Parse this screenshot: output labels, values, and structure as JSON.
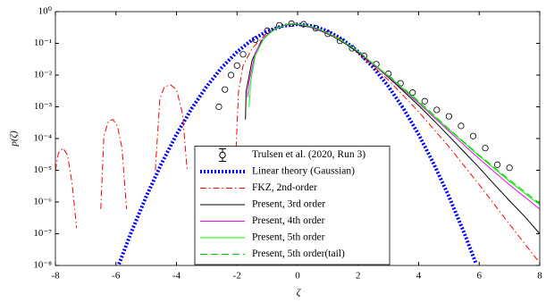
{
  "chart_data": {
    "type": "line",
    "x_label": "ζ",
    "y_label": "p(ζ)",
    "xlim": [
      -8,
      8
    ],
    "xticks": [
      -8,
      -6,
      -4,
      -2,
      0,
      2,
      4,
      6,
      8
    ],
    "ylim": [
      1e-08,
      1
    ],
    "y_scale": "log",
    "yticks": [
      {
        "value": 1e-08,
        "label": "10⁻⁸"
      },
      {
        "value": 1e-07,
        "label": "10⁻⁷"
      },
      {
        "value": 1e-06,
        "label": "10⁻⁶"
      },
      {
        "value": 1e-05,
        "label": "10⁻⁵"
      },
      {
        "value": 0.0001,
        "label": "10⁻⁴"
      },
      {
        "value": 0.001,
        "label": "10⁻³"
      },
      {
        "value": 0.01,
        "label": "10⁻²"
      },
      {
        "value": 0.1,
        "label": "10⁻¹"
      },
      {
        "value": 1,
        "label": "10⁰"
      }
    ],
    "legend_position": "bottom",
    "series": [
      {
        "name": "Trulsen et al. (2020, Run 3)",
        "color": "#000000",
        "style": "markers",
        "x": [
          -2.6,
          -2.4,
          -2.2,
          -2.0,
          -1.8,
          -1.4,
          -1.0,
          -0.6,
          -0.2,
          0.2,
          0.6,
          1.0,
          1.4,
          1.8,
          2.2,
          2.6,
          3.0,
          3.4,
          3.8,
          4.2,
          4.6,
          5.0,
          5.4,
          5.8,
          6.2,
          6.6,
          7.0
        ],
        "values": [
          0.001,
          0.0035,
          0.01,
          0.02,
          0.045,
          0.13,
          0.25,
          0.37,
          0.42,
          0.4,
          0.3,
          0.2,
          0.12,
          0.07,
          0.04,
          0.022,
          0.011,
          0.0055,
          0.0028,
          0.0015,
          0.0008,
          0.0005,
          0.00025,
          0.00012,
          5e-05,
          1.5e-05,
          1.2e-05
        ]
      },
      {
        "name": "Linear theory (Gaussian)",
        "color": "#0000ff",
        "style": "dotted",
        "x": [
          -5.9,
          -5.5,
          -5,
          -4.5,
          -4,
          -3.5,
          -3,
          -2.5,
          -2,
          -1.5,
          -1,
          -0.5,
          0,
          0.5,
          1,
          1.5,
          2,
          2.5,
          3,
          3.5,
          4,
          4.5,
          5,
          5.5,
          5.9
        ],
        "values": [
          1.1e-08,
          1.08e-07,
          1.49e-06,
          1.6e-05,
          0.000134,
          0.00087,
          0.00443,
          0.0175,
          0.054,
          0.1295,
          0.242,
          0.352,
          0.399,
          0.352,
          0.242,
          0.1295,
          0.054,
          0.0175,
          0.00443,
          0.00087,
          0.000134,
          1.6e-05,
          1.49e-06,
          1.08e-07,
          1.1e-08
        ]
      },
      {
        "name": "FKZ, 2nd-order",
        "color": "#ff0000",
        "style": "dashdot",
        "x": [
          -8,
          -7.9,
          -7.75,
          -7.6,
          -7.45,
          -7.3,
          null,
          -6.5,
          -6.4,
          -6.25,
          -6.1,
          -5.95,
          -5.8,
          -5.65,
          null,
          -4.7,
          -4.55,
          -4.4,
          -4.2,
          -4.0,
          -3.8,
          -3.65,
          null,
          -2.05,
          -1.95,
          -1.8,
          -1.5,
          -1.0,
          -0.5,
          -0.2,
          0,
          0.5,
          1,
          1.5,
          2,
          3,
          4,
          5,
          6,
          7,
          8
        ],
        "values": [
          1e-05,
          3.5e-05,
          5e-05,
          3e-05,
          4e-06,
          1.5e-07,
          null,
          6e-07,
          0.00012,
          0.00035,
          0.0004,
          0.00025,
          5e-05,
          6e-07,
          null,
          1e-05,
          0.0018,
          0.0042,
          0.005,
          0.0035,
          0.0006,
          1e-05,
          null,
          2e-05,
          0.003,
          0.02,
          0.07,
          0.22,
          0.36,
          0.4,
          0.39,
          0.32,
          0.22,
          0.12,
          0.05,
          0.007,
          0.0007,
          5.5e-05,
          3.5e-06,
          2e-07,
          1.2e-08
        ]
      },
      {
        "name": "Present, 3rd order",
        "color": "#000000",
        "style": "solid",
        "x": [
          -1.72,
          -1.7,
          -1.5,
          -1.2,
          -0.8,
          -0.4,
          -0.2,
          0,
          0.4,
          0.8,
          1.2,
          1.6,
          2,
          2.5,
          3,
          3.5,
          4,
          4.5,
          5,
          5.5,
          6,
          6.5,
          7,
          7.5,
          8
        ],
        "values": [
          0.0004,
          0.003,
          0.03,
          0.12,
          0.27,
          0.38,
          0.4,
          0.39,
          0.33,
          0.24,
          0.16,
          0.095,
          0.052,
          0.022,
          0.0085,
          0.0031,
          0.0011,
          0.00037,
          0.00012,
          3.8e-05,
          1.2e-05,
          3.6e-06,
          1.1e-06,
          3.5e-07,
          1e-07
        ]
      },
      {
        "name": "Present, 4th order",
        "color": "#ff00ff",
        "style": "solid",
        "x": [
          -1.65,
          -1.6,
          -1.4,
          -1.1,
          -0.7,
          -0.3,
          0,
          0.4,
          0.8,
          1.2,
          1.6,
          2,
          3,
          4,
          5,
          6,
          7,
          8
        ],
        "values": [
          0.002,
          0.006,
          0.05,
          0.16,
          0.3,
          0.4,
          0.4,
          0.34,
          0.25,
          0.165,
          0.1,
          0.055,
          0.009,
          0.0013,
          0.00017,
          2.3e-05,
          3.5e-06,
          6e-07
        ]
      },
      {
        "name": "Present, 5th order",
        "color": "#00ff00",
        "style": "solid",
        "x": [
          -1.6,
          -1.55,
          -1.4,
          -1.1,
          -0.7,
          -0.3,
          0,
          0.4,
          0.8,
          1.2,
          1.6,
          2,
          3,
          4,
          5,
          6,
          7,
          8
        ],
        "values": [
          0.001,
          0.006,
          0.04,
          0.15,
          0.3,
          0.41,
          0.41,
          0.35,
          0.26,
          0.17,
          0.1,
          0.056,
          0.0095,
          0.0014,
          0.00019,
          2.8e-05,
          4.5e-06,
          8e-07
        ]
      },
      {
        "name": "Present, 5th order(tail)",
        "color": "#00cc00",
        "style": "dashed",
        "x": [
          3,
          4,
          5,
          6,
          7,
          8
        ],
        "values": [
          0.01,
          0.0015,
          0.0002,
          3e-05,
          5e-06,
          9e-07
        ]
      }
    ]
  }
}
